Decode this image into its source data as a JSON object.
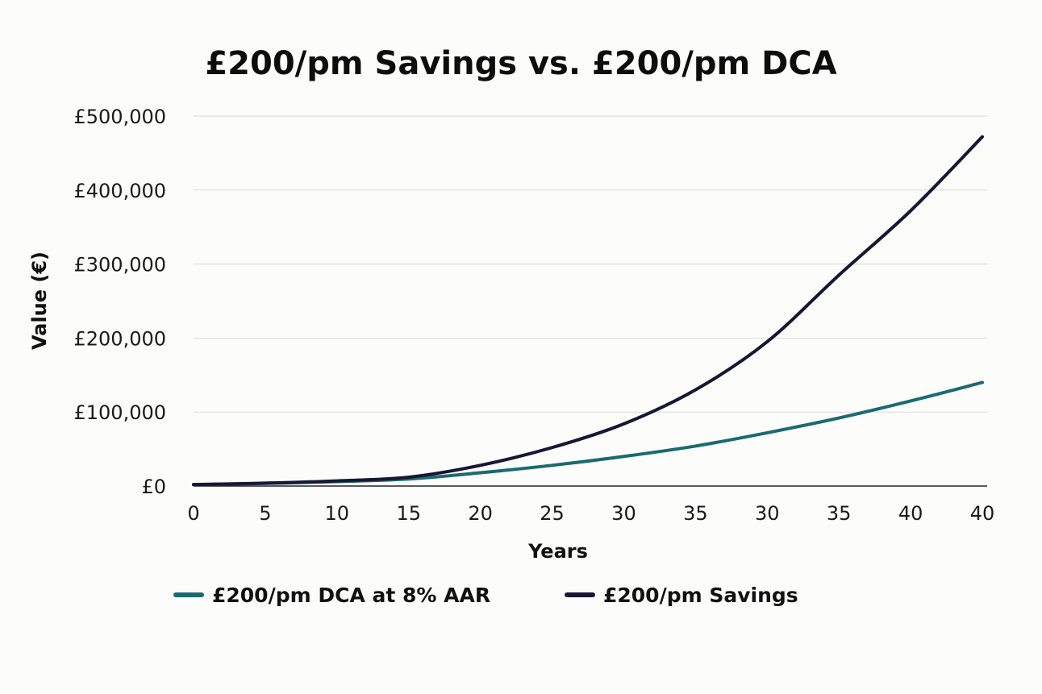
{
  "chart_data": {
    "type": "line",
    "title": "£200/pm Savings vs. £200/pm DCA",
    "xlabel": "Years",
    "ylabel": "Value (€)",
    "x_tick_labels": [
      "0",
      "5",
      "10",
      "15",
      "20",
      "25",
      "30",
      "35",
      "30",
      "35",
      "40",
      "40"
    ],
    "y_ticks": [
      0,
      100000,
      200000,
      300000,
      400000,
      500000
    ],
    "y_tick_labels": [
      "£0",
      "£100,000",
      "£200,000",
      "£300,000",
      "£400,000",
      "£500,000"
    ],
    "ylim": [
      0,
      500000
    ],
    "grid": "horizontal",
    "legend_position": "bottom",
    "series": [
      {
        "name": "£200/pm DCA at 8% AAR",
        "color": "#1a6b70",
        "values": [
          2000,
          3500,
          6000,
          9500,
          18000,
          28000,
          40000,
          54000,
          72000,
          92000,
          115000,
          140000
        ]
      },
      {
        "name": "£200/pm Savings",
        "color": "#171634",
        "values": [
          2000,
          4000,
          7000,
          12000,
          28000,
          52000,
          84000,
          130000,
          195000,
          285000,
          372000,
          472000
        ]
      }
    ]
  }
}
